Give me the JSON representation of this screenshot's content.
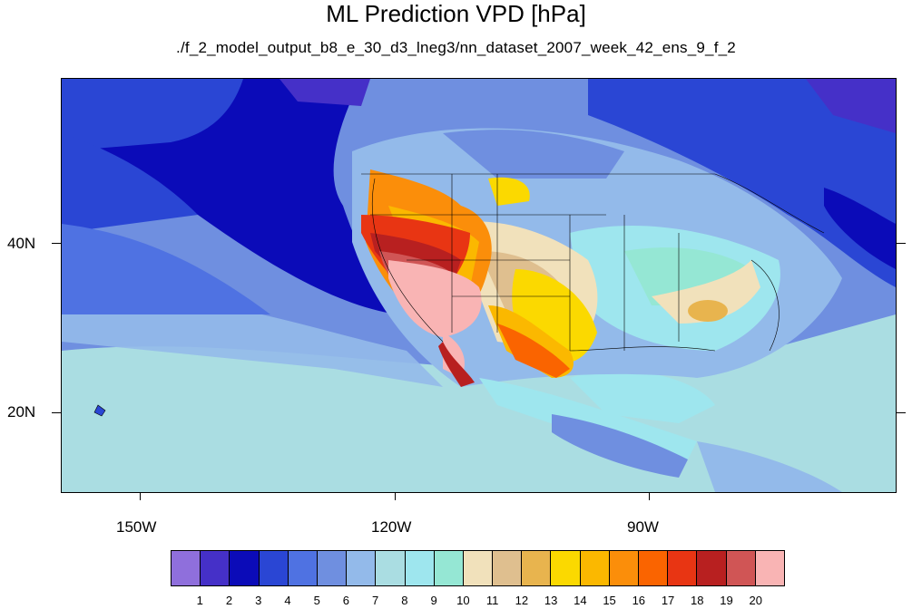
{
  "title": "ML Prediction VPD [hPa]",
  "subtitle": "./f_2_model_output_b8_e_30_d3_lneg3/nn_dataset_2007_week_42_ens_9_f_2",
  "axes": {
    "lon_labels": [
      "150W",
      "120W",
      "90W"
    ],
    "lat_labels": [
      "40N",
      "20N"
    ]
  },
  "colorbar": {
    "colors": [
      "#8f6fdc",
      "#4530c8",
      "#0b0bb8",
      "#2a46d4",
      "#4f72e2",
      "#6f8fe0",
      "#93baea",
      "#aadde2",
      "#9ee6ee",
      "#95e7d4",
      "#f1e1bb",
      "#dfbf8f",
      "#e8b44e",
      "#fbd900",
      "#fbb800",
      "#fb8e0a",
      "#fa6400",
      "#e83513",
      "#b82020",
      "#d05555",
      "#f9b4b4"
    ],
    "labels": [
      "1",
      "2",
      "3",
      "4",
      "5",
      "6",
      "7",
      "8",
      "9",
      "10",
      "11",
      "12",
      "13",
      "14",
      "15",
      "16",
      "17",
      "18",
      "19",
      "20"
    ]
  }
}
